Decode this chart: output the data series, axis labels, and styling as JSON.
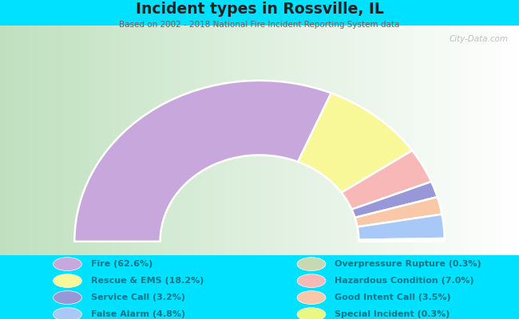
{
  "title": "Incident types in Rossville, IL",
  "subtitle": "Based on 2002 - 2018 National Fire Incident Reporting System data",
  "background_outer": "#00e0ff",
  "watermark": "City-Data.com",
  "segments": [
    {
      "label": "Fire",
      "value": 62.6,
      "color": "#c8a8dc"
    },
    {
      "label": "Rescue & EMS",
      "value": 18.2,
      "color": "#f8f898"
    },
    {
      "label": "Hazardous Condition",
      "value": 7.0,
      "color": "#f8b8b8"
    },
    {
      "label": "Service Call",
      "value": 3.2,
      "color": "#9898d8"
    },
    {
      "label": "Good Intent Call",
      "value": 3.5,
      "color": "#f8c8a8"
    },
    {
      "label": "False Alarm",
      "value": 4.8,
      "color": "#a8c8f8"
    },
    {
      "label": "Overpressure Rupture",
      "value": 0.3,
      "color": "#c8d8b0"
    },
    {
      "label": "Special Incident",
      "value": 0.3,
      "color": "#e8f880"
    }
  ],
  "legend_order": [
    {
      "label": "Fire (62.6%)",
      "color": "#c8a8dc"
    },
    {
      "label": "Rescue & EMS (18.2%)",
      "color": "#f8f898"
    },
    {
      "label": "Service Call (3.2%)",
      "color": "#9898d8"
    },
    {
      "label": "False Alarm (4.8%)",
      "color": "#a8c8f8"
    },
    {
      "label": "Overpressure Rupture (0.3%)",
      "color": "#c8d8b0"
    },
    {
      "label": "Hazardous Condition (7.0%)",
      "color": "#f8b8b8"
    },
    {
      "label": "Good Intent Call (3.5%)",
      "color": "#f8c8a8"
    },
    {
      "label": "Special Incident (0.3%)",
      "color": "#e8f880"
    }
  ],
  "title_color": "#222222",
  "subtitle_color": "#666666",
  "legend_text_color": "#007788",
  "r_out": 0.82,
  "r_in": 0.44,
  "chart_bg_left": "#c0ddc0",
  "chart_bg_right": "#f5f5ff"
}
